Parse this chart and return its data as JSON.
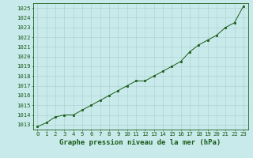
{
  "x": [
    0,
    1,
    2,
    3,
    4,
    5,
    6,
    7,
    8,
    9,
    10,
    11,
    12,
    13,
    14,
    15,
    16,
    17,
    18,
    19,
    20,
    21,
    22,
    23
  ],
  "y": [
    1012.8,
    1013.2,
    1013.8,
    1014.0,
    1014.0,
    1014.5,
    1015.0,
    1015.5,
    1016.0,
    1016.5,
    1017.0,
    1017.5,
    1017.5,
    1018.0,
    1018.5,
    1019.0,
    1019.5,
    1020.5,
    1021.2,
    1021.7,
    1022.2,
    1023.0,
    1023.5,
    1025.2
  ],
  "ylim": [
    1012.5,
    1025.5
  ],
  "yticks": [
    1013,
    1014,
    1015,
    1016,
    1017,
    1018,
    1019,
    1020,
    1021,
    1022,
    1023,
    1024,
    1025
  ],
  "xticks": [
    0,
    1,
    2,
    3,
    4,
    5,
    6,
    7,
    8,
    9,
    10,
    11,
    12,
    13,
    14,
    15,
    16,
    17,
    18,
    19,
    20,
    21,
    22,
    23
  ],
  "xlabel": "Graphe pression niveau de la mer (hPa)",
  "line_color": "#1a5c1a",
  "marker_color": "#1a5c1a",
  "bg_color": "#c8eaea",
  "grid_color": "#a8cece",
  "text_color": "#1a5c1a",
  "tick_fontsize": 5.2,
  "xlabel_fontsize": 6.5
}
